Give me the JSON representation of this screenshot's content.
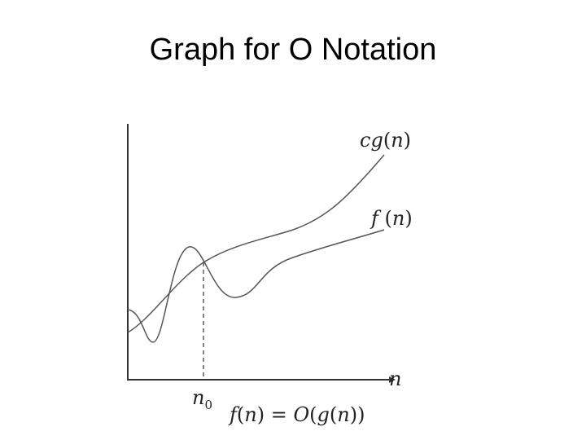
{
  "slide": {
    "title": "Graph for O Notation"
  },
  "diagram": {
    "curve_labels": {
      "cg": "cg(n)",
      "f": "f(n)"
    },
    "x_axis_label": "n",
    "threshold_label": "n0",
    "caption": "f(n) = O(g(n))"
  }
}
